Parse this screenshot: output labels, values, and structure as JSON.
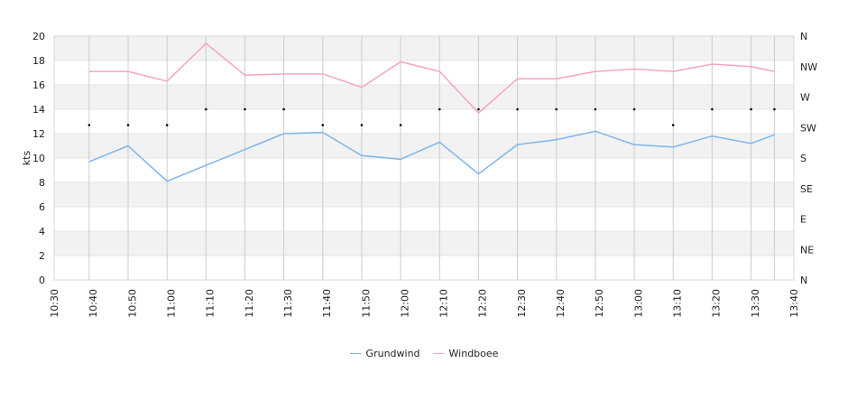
{
  "chart_data": {
    "type": "line",
    "y_axis_label": "kts",
    "y_ticks": [
      "0",
      "2",
      "4",
      "6",
      "8",
      "10",
      "12",
      "14",
      "16",
      "18",
      "20"
    ],
    "ylim": [
      0,
      20
    ],
    "right_axis_labels": [
      "N",
      "NE",
      "E",
      "SE",
      "S",
      "SW",
      "W",
      "NW",
      "N"
    ],
    "x_ticks": [
      "10:30",
      "10:40",
      "10:50",
      "11:00",
      "11:10",
      "11:20",
      "11:30",
      "11:40",
      "11:50",
      "12:00",
      "12:10",
      "12:20",
      "12:30",
      "12:40",
      "12:50",
      "13:00",
      "13:10",
      "13:20",
      "13:30",
      "13:40"
    ],
    "xlim": [
      "10:30",
      "13:40"
    ],
    "x": [
      "10:39",
      "10:49",
      "10:59",
      "11:09",
      "11:19",
      "11:29",
      "11:39",
      "11:49",
      "11:59",
      "12:09",
      "12:19",
      "12:29",
      "12:39",
      "12:49",
      "12:59",
      "13:09",
      "13:19",
      "13:29",
      "13:35"
    ],
    "series": [
      {
        "name": "Grundwind",
        "color": "#7cb5ec",
        "values": [
          9.7,
          11.0,
          8.1,
          9.4,
          10.7,
          12.0,
          12.1,
          10.2,
          9.9,
          11.3,
          8.7,
          11.1,
          11.5,
          12.2,
          11.1,
          10.9,
          11.8,
          11.2,
          11.9
        ]
      },
      {
        "name": "Windboee",
        "color": "#f7a3c7",
        "values": [
          17.1,
          17.1,
          16.3,
          19.4,
          16.8,
          16.9,
          16.9,
          15.8,
          17.9,
          17.1,
          13.7,
          16.5,
          16.5,
          17.1,
          17.3,
          17.1,
          17.7,
          17.5,
          17.1
        ]
      }
    ],
    "direction_y": [
      12.7,
      12.7,
      12.7,
      14.0,
      14.0,
      14.0,
      12.7,
      12.7,
      12.7,
      14.0,
      14.0,
      14.0,
      14.0,
      14.0,
      14.0,
      12.7,
      14.0,
      14.0,
      14.0
    ],
    "grid": true,
    "legend_position": "bottom-center"
  },
  "legend": {
    "item0": "Grundwind",
    "item1": "Windboee"
  }
}
